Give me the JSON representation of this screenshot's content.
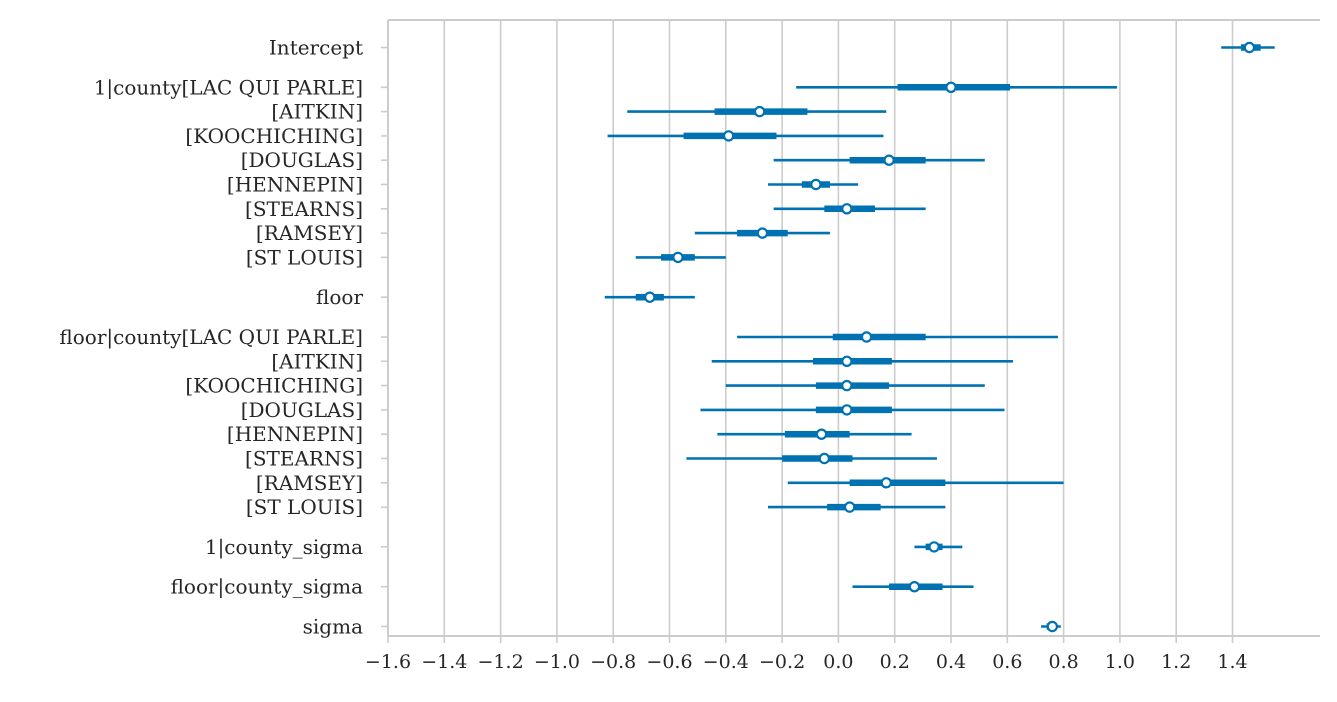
{
  "chart_data": {
    "type": "forest",
    "title": "",
    "xlabel": "",
    "ylabel": "",
    "xlim": [
      -1.6,
      1.6
    ],
    "xticks": [
      -1.6,
      -1.4,
      -1.2,
      -1.0,
      -0.8,
      -0.6,
      -0.4,
      -0.2,
      0.0,
      0.2,
      0.4,
      0.6,
      0.8,
      1.0,
      1.2,
      1.4
    ],
    "xtick_labels": [
      "−1.6",
      "−1.4",
      "−1.2",
      "−1.0",
      "−0.8",
      "−0.6",
      "−0.4",
      "−0.2",
      "0.0",
      "0.2",
      "0.4",
      "0.6",
      "0.8",
      "1.0",
      "1.2",
      "1.4"
    ],
    "grid": "vertical",
    "color": "#0072b2",
    "rows": [
      {
        "label": "Intercept",
        "group": 0,
        "mean": 1.46,
        "hdi50": [
          1.43,
          1.5
        ],
        "hdi94": [
          1.36,
          1.55
        ]
      },
      {
        "label": "1|county[LAC QUI PARLE]",
        "group": 1,
        "mean": 0.4,
        "hdi50": [
          0.21,
          0.61
        ],
        "hdi94": [
          -0.15,
          0.99
        ]
      },
      {
        "label": "[AITKIN]",
        "group": 1,
        "mean": -0.28,
        "hdi50": [
          -0.44,
          -0.11
        ],
        "hdi94": [
          -0.75,
          0.17
        ]
      },
      {
        "label": "[KOOCHICHING]",
        "group": 1,
        "mean": -0.39,
        "hdi50": [
          -0.55,
          -0.22
        ],
        "hdi94": [
          -0.82,
          0.16
        ]
      },
      {
        "label": "[DOUGLAS]",
        "group": 1,
        "mean": 0.18,
        "hdi50": [
          0.04,
          0.31
        ],
        "hdi94": [
          -0.23,
          0.52
        ]
      },
      {
        "label": "[HENNEPIN]",
        "group": 1,
        "mean": -0.08,
        "hdi50": [
          -0.13,
          -0.03
        ],
        "hdi94": [
          -0.25,
          0.07
        ]
      },
      {
        "label": "[STEARNS]",
        "group": 1,
        "mean": 0.03,
        "hdi50": [
          -0.05,
          0.13
        ],
        "hdi94": [
          -0.23,
          0.31
        ]
      },
      {
        "label": "[RAMSEY]",
        "group": 1,
        "mean": -0.27,
        "hdi50": [
          -0.36,
          -0.18
        ],
        "hdi94": [
          -0.51,
          -0.03
        ]
      },
      {
        "label": "[ST LOUIS]",
        "group": 1,
        "mean": -0.57,
        "hdi50": [
          -0.63,
          -0.51
        ],
        "hdi94": [
          -0.72,
          -0.4
        ]
      },
      {
        "label": "floor",
        "group": 2,
        "mean": -0.67,
        "hdi50": [
          -0.72,
          -0.62
        ],
        "hdi94": [
          -0.83,
          -0.51
        ]
      },
      {
        "label": "floor|county[LAC QUI PARLE]",
        "group": 3,
        "mean": 0.1,
        "hdi50": [
          -0.02,
          0.31
        ],
        "hdi94": [
          -0.36,
          0.78
        ]
      },
      {
        "label": "[AITKIN]",
        "group": 3,
        "mean": 0.03,
        "hdi50": [
          -0.09,
          0.19
        ],
        "hdi94": [
          -0.45,
          0.62
        ]
      },
      {
        "label": "[KOOCHICHING]",
        "group": 3,
        "mean": 0.03,
        "hdi50": [
          -0.08,
          0.18
        ],
        "hdi94": [
          -0.4,
          0.52
        ]
      },
      {
        "label": "[DOUGLAS]",
        "group": 3,
        "mean": 0.03,
        "hdi50": [
          -0.08,
          0.19
        ],
        "hdi94": [
          -0.49,
          0.59
        ]
      },
      {
        "label": "[HENNEPIN]",
        "group": 3,
        "mean": -0.06,
        "hdi50": [
          -0.19,
          0.04
        ],
        "hdi94": [
          -0.43,
          0.26
        ]
      },
      {
        "label": "[STEARNS]",
        "group": 3,
        "mean": -0.05,
        "hdi50": [
          -0.2,
          0.05
        ],
        "hdi94": [
          -0.54,
          0.35
        ]
      },
      {
        "label": "[RAMSEY]",
        "group": 3,
        "mean": 0.17,
        "hdi50": [
          0.04,
          0.38
        ],
        "hdi94": [
          -0.18,
          0.8
        ]
      },
      {
        "label": "[ST LOUIS]",
        "group": 3,
        "mean": 0.04,
        "hdi50": [
          -0.04,
          0.15
        ],
        "hdi94": [
          -0.25,
          0.38
        ]
      },
      {
        "label": "1|county_sigma",
        "group": 4,
        "mean": 0.34,
        "hdi50": [
          0.31,
          0.37
        ],
        "hdi94": [
          0.27,
          0.44
        ]
      },
      {
        "label": "floor|county_sigma",
        "group": 5,
        "mean": 0.27,
        "hdi50": [
          0.18,
          0.37
        ],
        "hdi94": [
          0.05,
          0.48
        ]
      },
      {
        "label": "sigma",
        "group": 6,
        "mean": 0.76,
        "hdi50": [
          0.74,
          0.77
        ],
        "hdi94": [
          0.72,
          0.79
        ]
      }
    ]
  }
}
